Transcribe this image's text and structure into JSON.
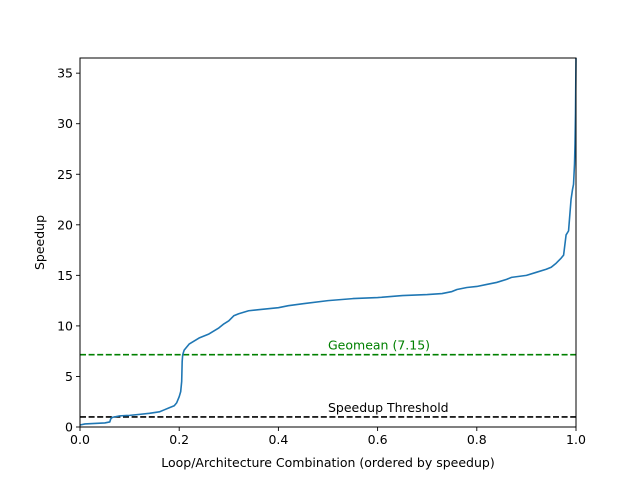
{
  "chart_data": {
    "type": "line",
    "title": "",
    "xlabel": "Loop/Architecture Combination (ordered by speedup)",
    "ylabel": "Speedup",
    "xlim": [
      0.0,
      1.0
    ],
    "ylim": [
      0,
      36.5
    ],
    "x_ticks": [
      0.0,
      0.2,
      0.4,
      0.6,
      0.8,
      1.0
    ],
    "x_tick_labels": [
      "0.0",
      "0.2",
      "0.4",
      "0.6",
      "0.8",
      "1.0"
    ],
    "y_ticks": [
      0,
      5,
      10,
      15,
      20,
      25,
      30,
      35
    ],
    "y_tick_labels": [
      "0",
      "5",
      "10",
      "15",
      "20",
      "25",
      "30",
      "35"
    ],
    "grid": false,
    "series": [
      {
        "name": "",
        "color": "#1f77b4",
        "x": [
          0.0,
          0.01,
          0.03,
          0.05,
          0.06,
          0.062,
          0.065,
          0.07,
          0.08,
          0.1,
          0.12,
          0.14,
          0.16,
          0.17,
          0.18,
          0.19,
          0.195,
          0.2,
          0.203,
          0.205,
          0.206,
          0.207,
          0.208,
          0.21,
          0.215,
          0.22,
          0.23,
          0.24,
          0.25,
          0.26,
          0.28,
          0.29,
          0.3,
          0.31,
          0.32,
          0.34,
          0.36,
          0.38,
          0.4,
          0.42,
          0.45,
          0.5,
          0.55,
          0.6,
          0.65,
          0.7,
          0.73,
          0.75,
          0.76,
          0.78,
          0.8,
          0.82,
          0.84,
          0.86,
          0.87,
          0.9,
          0.92,
          0.94,
          0.95,
          0.96,
          0.97,
          0.975,
          0.98,
          0.985,
          0.99,
          0.993,
          0.995,
          0.997,
          0.998,
          0.999,
          1.0
        ],
        "y": [
          0.2,
          0.3,
          0.35,
          0.4,
          0.5,
          0.8,
          0.95,
          1.0,
          1.1,
          1.15,
          1.25,
          1.35,
          1.5,
          1.7,
          1.9,
          2.1,
          2.4,
          3.0,
          3.5,
          4.5,
          6.5,
          7.1,
          7.3,
          7.6,
          7.9,
          8.2,
          8.5,
          8.8,
          9.0,
          9.2,
          9.8,
          10.2,
          10.5,
          11.0,
          11.2,
          11.5,
          11.6,
          11.7,
          11.8,
          12.0,
          12.2,
          12.5,
          12.7,
          12.8,
          13.0,
          13.1,
          13.2,
          13.4,
          13.6,
          13.8,
          13.9,
          14.1,
          14.3,
          14.6,
          14.8,
          15.0,
          15.3,
          15.6,
          15.8,
          16.2,
          16.7,
          17.0,
          19.0,
          19.4,
          22.5,
          23.5,
          24.0,
          26.0,
          28.0,
          31.0,
          36.5
        ]
      }
    ],
    "reference_lines": [
      {
        "label": "Geomean (7.15)",
        "y": 7.15,
        "color": "#008000",
        "style": "dashed",
        "label_x": 0.5
      },
      {
        "label": "Speedup Threshold",
        "y": 1.0,
        "color": "#000000",
        "style": "dashed",
        "label_x": 0.5
      }
    ]
  }
}
